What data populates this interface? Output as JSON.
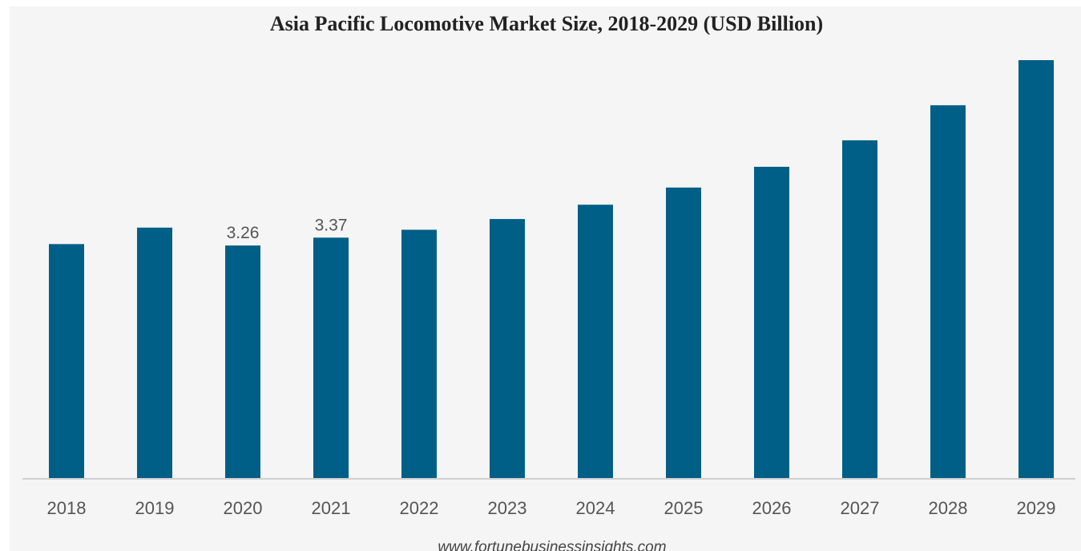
{
  "chart_data": {
    "type": "bar",
    "title": "Asia Pacific Locomotive Market Size, 2018-2029 (USD Billion)",
    "categories": [
      "2018",
      "2019",
      "2020",
      "2021",
      "2022",
      "2023",
      "2024",
      "2025",
      "2026",
      "2027",
      "2028",
      "2029"
    ],
    "values": [
      3.28,
      3.51,
      3.26,
      3.37,
      3.48,
      3.63,
      3.83,
      4.07,
      4.36,
      4.73,
      5.22,
      5.85
    ],
    "data_labels": [
      "",
      "",
      "3.26",
      "3.37",
      "",
      "",
      "",
      "",
      "",
      "",
      "",
      ""
    ],
    "xlabel": "",
    "ylabel": "",
    "ylim": [
      0,
      5.85
    ],
    "grid": false,
    "legend": "none",
    "colors": {
      "bar": "#005f87",
      "background": "#f5f5f5",
      "axis": "#d0d0d0"
    }
  },
  "source": "www.fortunebusinessinsights.com"
}
